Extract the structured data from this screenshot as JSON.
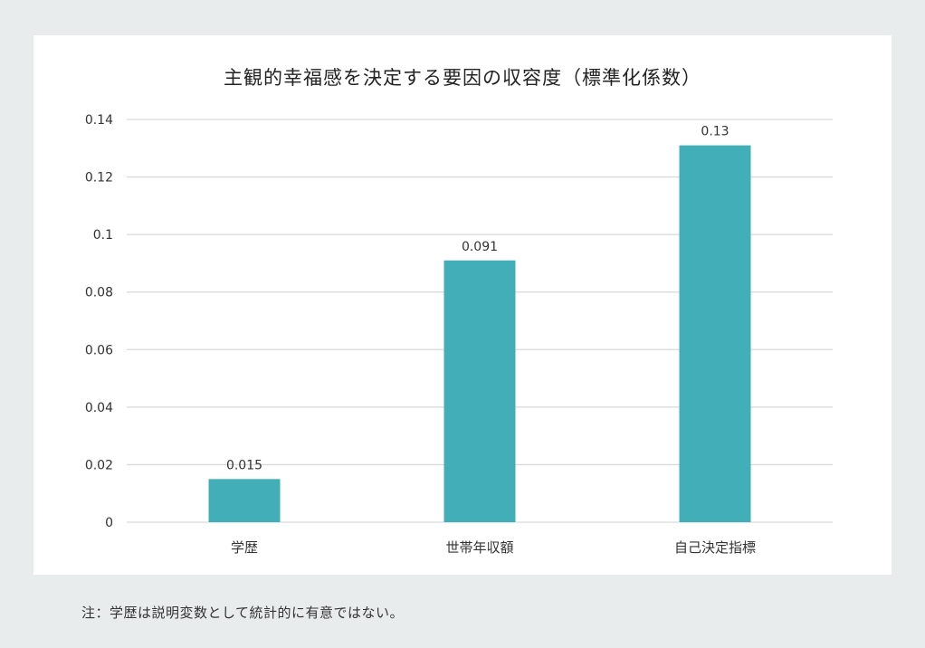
{
  "chart_data": {
    "type": "bar",
    "title": "主観的幸福感を決定する要因の収容度（標準化係数）",
    "xlabel": "",
    "ylabel": "",
    "categories": [
      "学歴",
      "世帯年収額",
      "自己決定指標"
    ],
    "values": [
      0.015,
      0.091,
      0.131
    ],
    "data_labels": [
      "0.015",
      "0.091",
      "0.13"
    ],
    "ylim": [
      0,
      0.14
    ],
    "yticks": [
      0,
      0.02,
      0.04,
      0.06,
      0.08,
      0.1,
      0.12,
      0.14
    ],
    "ytick_labels": [
      "0",
      "0.02",
      "0.04",
      "0.06",
      "0.08",
      "0.1",
      "0.12",
      "0.14"
    ],
    "grid": true,
    "legend": "none",
    "bar_color": "#41aeb8"
  },
  "note": "注：学歴は説明変数として統計的に有意ではない。"
}
